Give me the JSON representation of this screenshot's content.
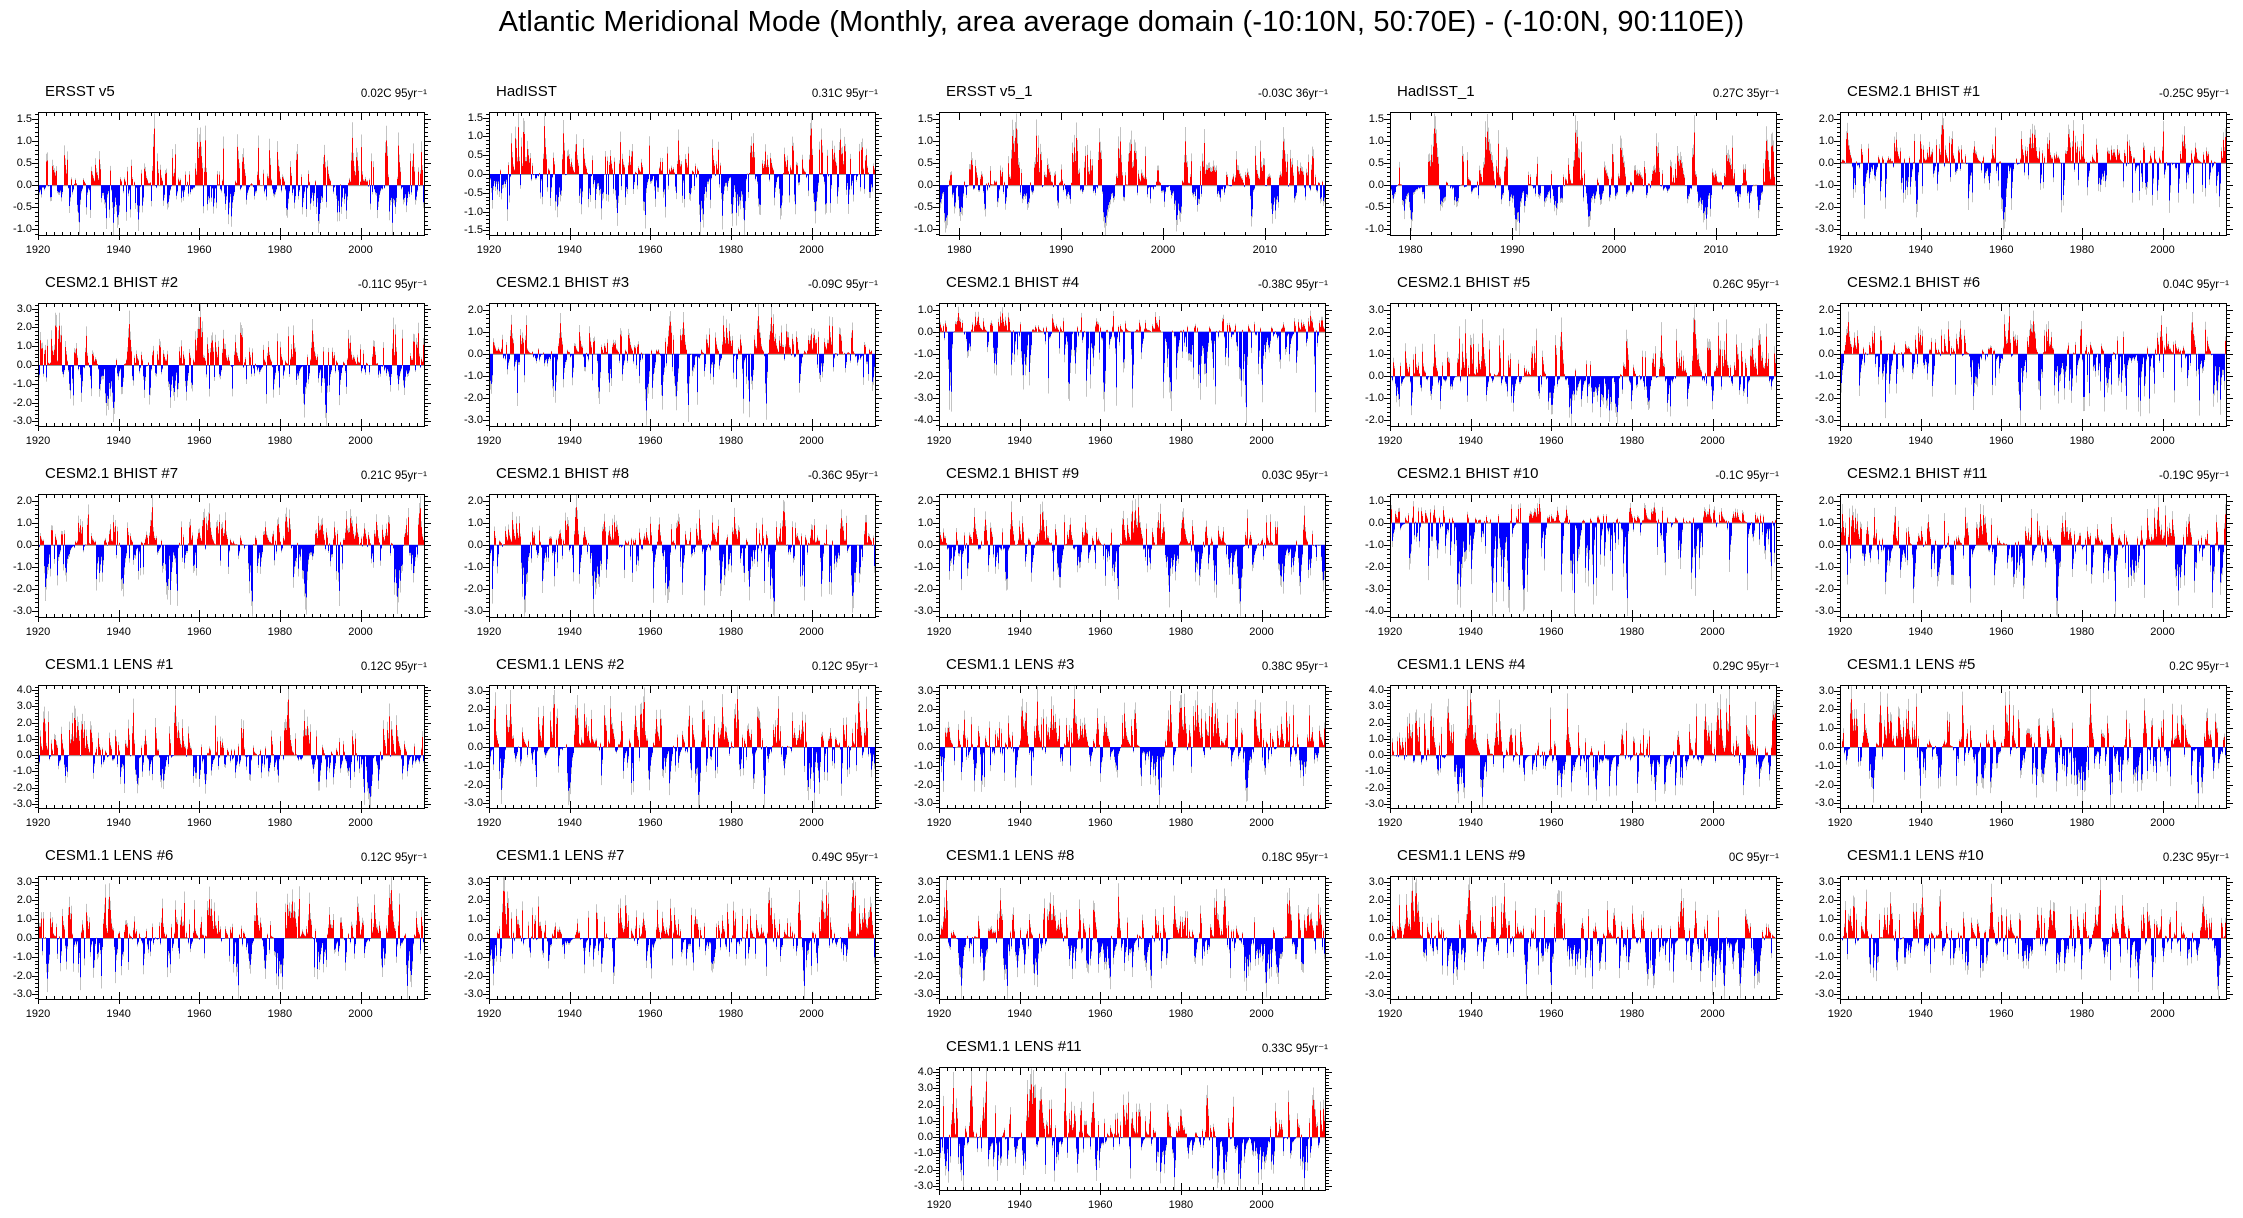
{
  "title": "Atlantic Meridional Mode (Monthly, area average domain (-10:10N, 50:70E) - (-10:0N, 90:110E))",
  "colors": {
    "bar_positive": "#ff0000",
    "bar_negative": "#0000ff",
    "bar_raw": "#c3c3c3",
    "axis": "#000000",
    "zero_line": "#999999"
  },
  "chart_data": [
    {
      "type": "bar",
      "row": 0,
      "col": 0,
      "title": "ERSST v5",
      "trend_label": "0.02C 95yr⁻¹",
      "x_start": 1920,
      "x_end": 2016,
      "xticks": [
        1920,
        1940,
        1960,
        1980,
        2000
      ],
      "yticks": [
        "1.5",
        "1.0",
        "0.5",
        "0.0",
        "-0.5",
        "-1.0"
      ],
      "ytick_step": 0.5,
      "ylim": [
        -1.0,
        1.5
      ],
      "months": 1152,
      "seed": 1,
      "series": "monthly AMM SST anomaly index; colored = filtered (red positive, blue negative), gray = raw monthly"
    },
    {
      "type": "bar",
      "row": 0,
      "col": 1,
      "title": "HadISST",
      "trend_label": "0.31C 95yr⁻¹",
      "x_start": 1920,
      "x_end": 2016,
      "xticks": [
        1920,
        1940,
        1960,
        1980,
        2000
      ],
      "yticks": [
        "1.5",
        "1.0",
        "0.5",
        "0.0",
        "-0.5",
        "-1.0",
        "-1.5"
      ],
      "ytick_step": 0.5,
      "ylim": [
        -1.5,
        1.5
      ],
      "months": 1152,
      "seed": 2,
      "series": "monthly AMM SST anomaly index"
    },
    {
      "type": "bar",
      "row": 0,
      "col": 2,
      "title": "ERSST v5_1",
      "trend_label": "-0.03C 36yr⁻¹",
      "x_start": 1978,
      "x_end": 2016,
      "xticks": [
        1980,
        1990,
        2000,
        2010
      ],
      "yticks": [
        "1.5",
        "1.0",
        "0.5",
        "0.0",
        "-0.5",
        "-1.0"
      ],
      "ytick_step": 0.5,
      "ylim": [
        -1.0,
        1.5
      ],
      "months": 432,
      "seed": 3,
      "series": "monthly AMM SST anomaly index (satellite era)"
    },
    {
      "type": "bar",
      "row": 0,
      "col": 3,
      "title": "HadISST_1",
      "trend_label": "0.27C 35yr⁻¹",
      "x_start": 1978,
      "x_end": 2016,
      "xticks": [
        1980,
        1990,
        2000,
        2010
      ],
      "yticks": [
        "1.5",
        "1.0",
        "0.5",
        "0.0",
        "-0.5",
        "-1.0"
      ],
      "ytick_step": 0.5,
      "ylim": [
        -1.0,
        1.5
      ],
      "months": 432,
      "seed": 4,
      "series": "monthly AMM SST anomaly index (satellite era)"
    },
    {
      "type": "bar",
      "row": 0,
      "col": 4,
      "title": "CESM2.1 BHIST #1",
      "trend_label": "-0.25C 95yr⁻¹",
      "x_start": 1920,
      "x_end": 2016,
      "xticks": [
        1920,
        1940,
        1960,
        1980,
        2000
      ],
      "yticks": [
        "2.0",
        "1.0",
        "0.0",
        "-1.0",
        "-2.0",
        "-3.0"
      ],
      "ytick_step": 1.0,
      "ylim": [
        -3.0,
        2.0
      ],
      "months": 1152,
      "seed": 5,
      "series": "monthly AMM SST anomaly index"
    },
    {
      "type": "bar",
      "row": 1,
      "col": 0,
      "title": "CESM2.1 BHIST #2",
      "trend_label": "-0.11C 95yr⁻¹",
      "x_start": 1920,
      "x_end": 2016,
      "xticks": [
        1920,
        1940,
        1960,
        1980,
        2000
      ],
      "yticks": [
        "3.0",
        "2.0",
        "1.0",
        "0.0",
        "-1.0",
        "-2.0",
        "-3.0"
      ],
      "ytick_step": 1.0,
      "ylim": [
        -3.0,
        3.0
      ],
      "months": 1152,
      "seed": 6,
      "series": "monthly AMM SST anomaly index"
    },
    {
      "type": "bar",
      "row": 1,
      "col": 1,
      "title": "CESM2.1 BHIST #3",
      "trend_label": "-0.09C 95yr⁻¹",
      "x_start": 1920,
      "x_end": 2016,
      "xticks": [
        1920,
        1940,
        1960,
        1980,
        2000
      ],
      "yticks": [
        "2.0",
        "1.0",
        "0.0",
        "-1.0",
        "-2.0",
        "-3.0"
      ],
      "ytick_step": 1.0,
      "ylim": [
        -3.0,
        2.0
      ],
      "months": 1152,
      "seed": 7,
      "series": "monthly AMM SST anomaly index"
    },
    {
      "type": "bar",
      "row": 1,
      "col": 2,
      "title": "CESM2.1 BHIST #4",
      "trend_label": "-0.38C 95yr⁻¹",
      "x_start": 1920,
      "x_end": 2016,
      "xticks": [
        1920,
        1940,
        1960,
        1980,
        2000
      ],
      "yticks": [
        "1.0",
        "0.0",
        "-1.0",
        "-2.0",
        "-3.0",
        "-4.0"
      ],
      "ytick_step": 1.0,
      "ylim": [
        -4.0,
        1.0
      ],
      "months": 1152,
      "seed": 8,
      "series": "monthly AMM SST anomaly index"
    },
    {
      "type": "bar",
      "row": 1,
      "col": 3,
      "title": "CESM2.1 BHIST #5",
      "trend_label": "0.26C 95yr⁻¹",
      "x_start": 1920,
      "x_end": 2016,
      "xticks": [
        1920,
        1940,
        1960,
        1980,
        2000
      ],
      "yticks": [
        "3.0",
        "2.0",
        "1.0",
        "0.0",
        "-1.0",
        "-2.0"
      ],
      "ytick_step": 1.0,
      "ylim": [
        -2.0,
        3.0
      ],
      "months": 1152,
      "seed": 9,
      "series": "monthly AMM SST anomaly index"
    },
    {
      "type": "bar",
      "row": 1,
      "col": 4,
      "title": "CESM2.1 BHIST #6",
      "trend_label": "0.04C 95yr⁻¹",
      "x_start": 1920,
      "x_end": 2016,
      "xticks": [
        1920,
        1940,
        1960,
        1980,
        2000
      ],
      "yticks": [
        "2.0",
        "1.0",
        "0.0",
        "-1.0",
        "-2.0",
        "-3.0"
      ],
      "ytick_step": 1.0,
      "ylim": [
        -3.0,
        2.0
      ],
      "months": 1152,
      "seed": 10,
      "series": "monthly AMM SST anomaly index"
    },
    {
      "type": "bar",
      "row": 2,
      "col": 0,
      "title": "CESM2.1 BHIST #7",
      "trend_label": "0.21C 95yr⁻¹",
      "x_start": 1920,
      "x_end": 2016,
      "xticks": [
        1920,
        1940,
        1960,
        1980,
        2000
      ],
      "yticks": [
        "2.0",
        "1.0",
        "0.0",
        "-1.0",
        "-2.0",
        "-3.0"
      ],
      "ytick_step": 1.0,
      "ylim": [
        -3.0,
        2.0
      ],
      "months": 1152,
      "seed": 11,
      "series": "monthly AMM SST anomaly index"
    },
    {
      "type": "bar",
      "row": 2,
      "col": 1,
      "title": "CESM2.1 BHIST #8",
      "trend_label": "-0.36C 95yr⁻¹",
      "x_start": 1920,
      "x_end": 2016,
      "xticks": [
        1920,
        1940,
        1960,
        1980,
        2000
      ],
      "yticks": [
        "2.0",
        "1.0",
        "0.0",
        "-1.0",
        "-2.0",
        "-3.0"
      ],
      "ytick_step": 1.0,
      "ylim": [
        -3.0,
        2.0
      ],
      "months": 1152,
      "seed": 12,
      "series": "monthly AMM SST anomaly index"
    },
    {
      "type": "bar",
      "row": 2,
      "col": 2,
      "title": "CESM2.1 BHIST #9",
      "trend_label": "0.03C 95yr⁻¹",
      "x_start": 1920,
      "x_end": 2016,
      "xticks": [
        1920,
        1940,
        1960,
        1980,
        2000
      ],
      "yticks": [
        "2.0",
        "1.0",
        "0.0",
        "-1.0",
        "-2.0",
        "-3.0"
      ],
      "ytick_step": 1.0,
      "ylim": [
        -3.0,
        2.0
      ],
      "months": 1152,
      "seed": 13,
      "series": "monthly AMM SST anomaly index"
    },
    {
      "type": "bar",
      "row": 2,
      "col": 3,
      "title": "CESM2.1 BHIST #10",
      "trend_label": "-0.1C 95yr⁻¹",
      "x_start": 1920,
      "x_end": 2016,
      "xticks": [
        1920,
        1940,
        1960,
        1980,
        2000
      ],
      "yticks": [
        "1.0",
        "0.0",
        "-1.0",
        "-2.0",
        "-3.0",
        "-4.0"
      ],
      "ytick_step": 1.0,
      "ylim": [
        -4.0,
        1.0
      ],
      "months": 1152,
      "seed": 14,
      "series": "monthly AMM SST anomaly index"
    },
    {
      "type": "bar",
      "row": 2,
      "col": 4,
      "title": "CESM2.1 BHIST #11",
      "trend_label": "-0.19C 95yr⁻¹",
      "x_start": 1920,
      "x_end": 2016,
      "xticks": [
        1920,
        1940,
        1960,
        1980,
        2000
      ],
      "yticks": [
        "2.0",
        "1.0",
        "0.0",
        "-1.0",
        "-2.0",
        "-3.0"
      ],
      "ytick_step": 1.0,
      "ylim": [
        -3.0,
        2.0
      ],
      "months": 1152,
      "seed": 15,
      "series": "monthly AMM SST anomaly index"
    },
    {
      "type": "bar",
      "row": 3,
      "col": 0,
      "title": "CESM1.1 LENS #1",
      "trend_label": "0.12C 95yr⁻¹",
      "x_start": 1920,
      "x_end": 2016,
      "xticks": [
        1920,
        1940,
        1960,
        1980,
        2000
      ],
      "yticks": [
        "4.0",
        "3.0",
        "2.0",
        "1.0",
        "0.0",
        "-1.0",
        "-2.0",
        "-3.0"
      ],
      "ytick_step": 1.0,
      "ylim": [
        -3.0,
        4.0
      ],
      "months": 1152,
      "seed": 16,
      "series": "monthly AMM SST anomaly index"
    },
    {
      "type": "bar",
      "row": 3,
      "col": 1,
      "title": "CESM1.1 LENS #2",
      "trend_label": "0.12C 95yr⁻¹",
      "x_start": 1920,
      "x_end": 2016,
      "xticks": [
        1920,
        1940,
        1960,
        1980,
        2000
      ],
      "yticks": [
        "3.0",
        "2.0",
        "1.0",
        "0.0",
        "-1.0",
        "-2.0",
        "-3.0"
      ],
      "ytick_step": 1.0,
      "ylim": [
        -3.0,
        3.0
      ],
      "months": 1152,
      "seed": 17,
      "series": "monthly AMM SST anomaly index"
    },
    {
      "type": "bar",
      "row": 3,
      "col": 2,
      "title": "CESM1.1 LENS #3",
      "trend_label": "0.38C 95yr⁻¹",
      "x_start": 1920,
      "x_end": 2016,
      "xticks": [
        1920,
        1940,
        1960,
        1980,
        2000
      ],
      "yticks": [
        "3.0",
        "2.0",
        "1.0",
        "0.0",
        "-1.0",
        "-2.0",
        "-3.0"
      ],
      "ytick_step": 1.0,
      "ylim": [
        -3.0,
        3.0
      ],
      "months": 1152,
      "seed": 18,
      "series": "monthly AMM SST anomaly index"
    },
    {
      "type": "bar",
      "row": 3,
      "col": 3,
      "title": "CESM1.1 LENS #4",
      "trend_label": "0.29C 95yr⁻¹",
      "x_start": 1920,
      "x_end": 2016,
      "xticks": [
        1920,
        1940,
        1960,
        1980,
        2000
      ],
      "yticks": [
        "4.0",
        "3.0",
        "2.0",
        "1.0",
        "0.0",
        "-1.0",
        "-2.0",
        "-3.0"
      ],
      "ytick_step": 1.0,
      "ylim": [
        -3.0,
        4.0
      ],
      "months": 1152,
      "seed": 19,
      "series": "monthly AMM SST anomaly index"
    },
    {
      "type": "bar",
      "row": 3,
      "col": 4,
      "title": "CESM1.1 LENS #5",
      "trend_label": "0.2C 95yr⁻¹",
      "x_start": 1920,
      "x_end": 2016,
      "xticks": [
        1920,
        1940,
        1960,
        1980,
        2000
      ],
      "yticks": [
        "3.0",
        "2.0",
        "1.0",
        "0.0",
        "-1.0",
        "-2.0",
        "-3.0"
      ],
      "ytick_step": 1.0,
      "ylim": [
        -3.0,
        3.0
      ],
      "months": 1152,
      "seed": 20,
      "series": "monthly AMM SST anomaly index"
    },
    {
      "type": "bar",
      "row": 4,
      "col": 0,
      "title": "CESM1.1 LENS #6",
      "trend_label": "0.12C 95yr⁻¹",
      "x_start": 1920,
      "x_end": 2016,
      "xticks": [
        1920,
        1940,
        1960,
        1980,
        2000
      ],
      "yticks": [
        "3.0",
        "2.0",
        "1.0",
        "0.0",
        "-1.0",
        "-2.0",
        "-3.0"
      ],
      "ytick_step": 1.0,
      "ylim": [
        -3.0,
        3.0
      ],
      "months": 1152,
      "seed": 21,
      "series": "monthly AMM SST anomaly index"
    },
    {
      "type": "bar",
      "row": 4,
      "col": 1,
      "title": "CESM1.1 LENS #7",
      "trend_label": "0.49C 95yr⁻¹",
      "x_start": 1920,
      "x_end": 2016,
      "xticks": [
        1920,
        1940,
        1960,
        1980,
        2000
      ],
      "yticks": [
        "3.0",
        "2.0",
        "1.0",
        "0.0",
        "-1.0",
        "-2.0",
        "-3.0"
      ],
      "ytick_step": 1.0,
      "ylim": [
        -3.0,
        3.0
      ],
      "months": 1152,
      "seed": 22,
      "series": "monthly AMM SST anomaly index"
    },
    {
      "type": "bar",
      "row": 4,
      "col": 2,
      "title": "CESM1.1 LENS #8",
      "trend_label": "0.18C 95yr⁻¹",
      "x_start": 1920,
      "x_end": 2016,
      "xticks": [
        1920,
        1940,
        1960,
        1980,
        2000
      ],
      "yticks": [
        "3.0",
        "2.0",
        "1.0",
        "0.0",
        "-1.0",
        "-2.0",
        "-3.0"
      ],
      "ytick_step": 1.0,
      "ylim": [
        -3.0,
        3.0
      ],
      "months": 1152,
      "seed": 23,
      "series": "monthly AMM SST anomaly index"
    },
    {
      "type": "bar",
      "row": 4,
      "col": 3,
      "title": "CESM1.1 LENS #9",
      "trend_label": "0C 95yr⁻¹",
      "x_start": 1920,
      "x_end": 2016,
      "xticks": [
        1920,
        1940,
        1960,
        1980,
        2000
      ],
      "yticks": [
        "3.0",
        "2.0",
        "1.0",
        "0.0",
        "-1.0",
        "-2.0",
        "-3.0"
      ],
      "ytick_step": 1.0,
      "ylim": [
        -3.0,
        3.0
      ],
      "months": 1152,
      "seed": 24,
      "series": "monthly AMM SST anomaly index"
    },
    {
      "type": "bar",
      "row": 4,
      "col": 4,
      "title": "CESM1.1 LENS #10",
      "trend_label": "0.23C 95yr⁻¹",
      "x_start": 1920,
      "x_end": 2016,
      "xticks": [
        1920,
        1940,
        1960,
        1980,
        2000
      ],
      "yticks": [
        "3.0",
        "2.0",
        "1.0",
        "0.0",
        "-1.0",
        "-2.0",
        "-3.0"
      ],
      "ytick_step": 1.0,
      "ylim": [
        -3.0,
        3.0
      ],
      "months": 1152,
      "seed": 25,
      "series": "monthly AMM SST anomaly index"
    },
    {
      "type": "bar",
      "row": 5,
      "col": 2,
      "title": "CESM1.1 LENS #11",
      "trend_label": "0.33C 95yr⁻¹",
      "x_start": 1920,
      "x_end": 2016,
      "xticks": [
        1920,
        1940,
        1960,
        1980,
        2000
      ],
      "yticks": [
        "4.0",
        "3.0",
        "2.0",
        "1.0",
        "0.0",
        "-1.0",
        "-2.0",
        "-3.0"
      ],
      "ytick_step": 1.0,
      "ylim": [
        -3.0,
        4.0
      ],
      "months": 1152,
      "seed": 26,
      "series": "monthly AMM SST anomaly index"
    }
  ]
}
